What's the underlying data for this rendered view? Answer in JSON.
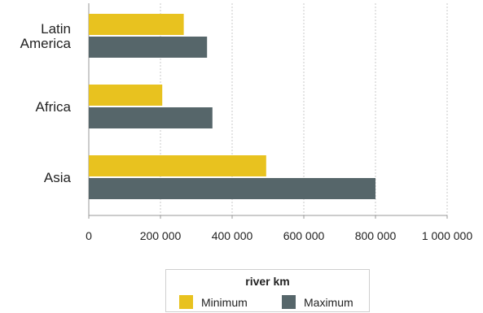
{
  "chart_data": {
    "type": "bar",
    "orientation": "horizontal",
    "categories": [
      "Latin America",
      "Africa",
      "Asia"
    ],
    "category_label_lines": [
      [
        "Latin",
        "America"
      ],
      [
        "Africa"
      ],
      [
        "Asia"
      ]
    ],
    "series": [
      {
        "name": "Minimum",
        "values": [
          265000,
          205000,
          495000
        ]
      },
      {
        "name": "Maximum",
        "values": [
          330000,
          345000,
          800000
        ]
      }
    ],
    "xlim": [
      0,
      1000000
    ],
    "xticks": [
      0,
      200000,
      400000,
      600000,
      800000,
      1000000
    ],
    "xtick_labels": [
      "0",
      "200 000",
      "400 000",
      "600 000",
      "800 000",
      "1 000 000"
    ],
    "legend_title": "river km",
    "legend_position": "bottom",
    "grid": "vertical dotted",
    "colors": {
      "Minimum": "#e8c21f",
      "Maximum": "#56666a",
      "grid": "#c9c9c9",
      "axis": "#9a9a9a",
      "text": "#222222"
    }
  }
}
